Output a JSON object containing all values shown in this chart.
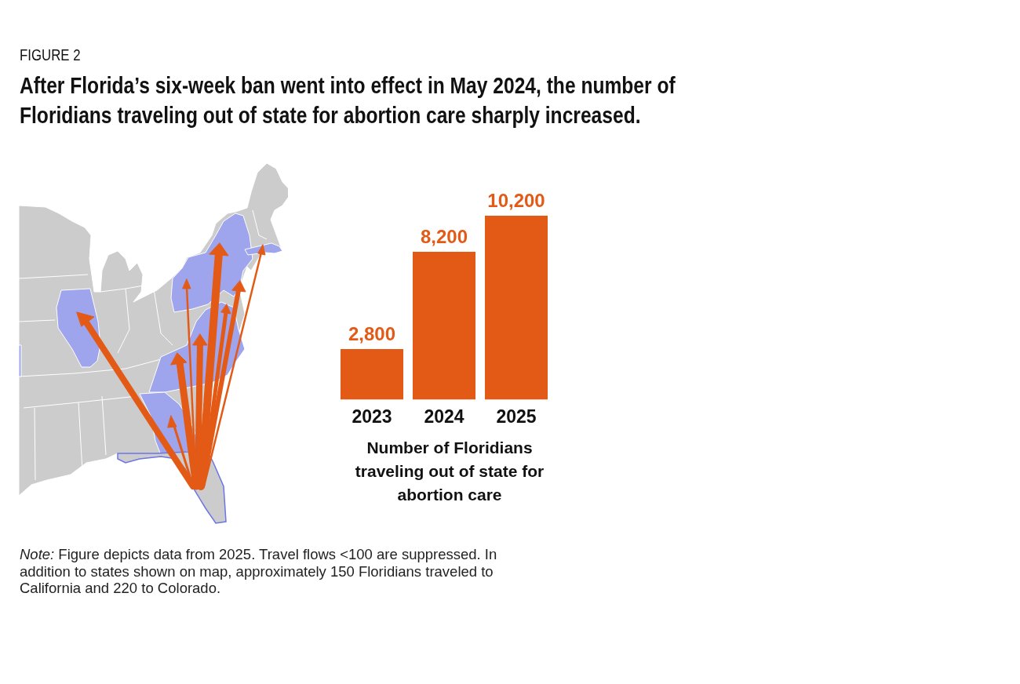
{
  "chart_data": {
    "type": "bar",
    "subtitle": "FIGURE 2",
    "title": "After Florida’s six-week ban went into effect in May 2024, the number of Floridians traveling out of state for abortion care sharply increased.",
    "xlabel": "Number of Floridians traveling out of state for abortion care",
    "categories": [
      "2023",
      "2024",
      "2025"
    ],
    "values": [
      2800,
      8200,
      10200
    ],
    "value_labels": [
      "2,800",
      "8,200",
      "10,200"
    ],
    "color": "#e35a17",
    "annotations": [
      "Note: Figure depicts data from 2025. Travel flows <100 are suppressed. In addition to states shown on map, approximately 150 Floridians traveled to California and 220 to Colorado."
    ]
  }
}
